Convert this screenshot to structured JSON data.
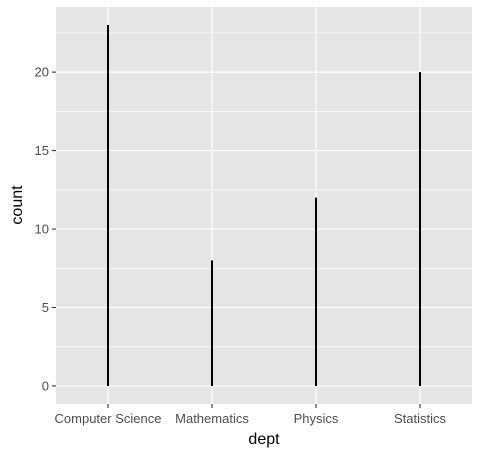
{
  "chart_data": {
    "type": "bar",
    "categories": [
      "Computer Science",
      "Mathematics",
      "Physics",
      "Statistics"
    ],
    "values": [
      23,
      8,
      12,
      20
    ],
    "xlabel": "dept",
    "ylabel": "count",
    "ylim": [
      -1.15,
      24.15
    ],
    "yticks": [
      0,
      5,
      10,
      15,
      20
    ],
    "ytick_labels": [
      "0",
      "5",
      "10",
      "15",
      "20"
    ],
    "grid": true,
    "colors": {
      "panel": "#e5e5e5",
      "grid": "#ffffff",
      "bar": "#000000",
      "tick_text": "#4d4d4d",
      "tick_mark": "#333333"
    }
  }
}
